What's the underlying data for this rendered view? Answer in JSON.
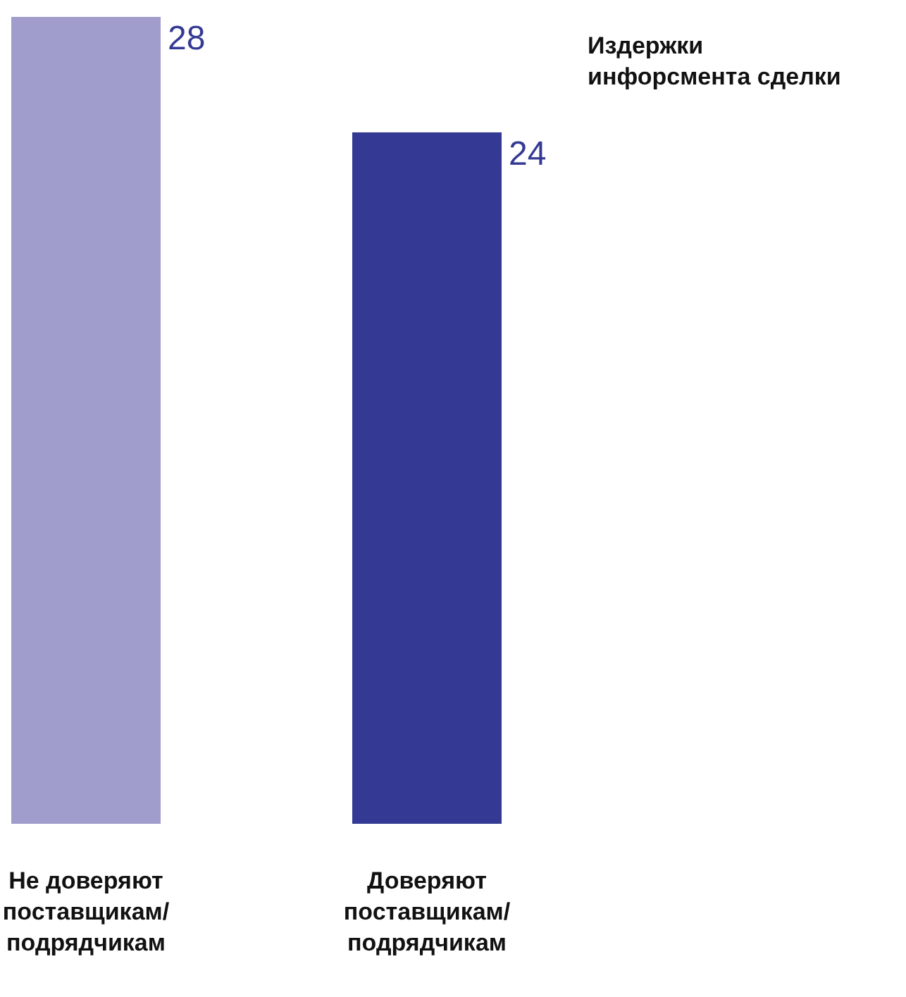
{
  "chart_data": {
    "type": "bar",
    "title": "Издержки\nинфорсмента сделки",
    "categories": [
      "Не доверяют\nпоставщикам/\nподрядчикам",
      "Доверяют\nпоставщикам/\nподрядчикам"
    ],
    "values": [
      28,
      24
    ],
    "colors": [
      "#a09ccb",
      "#343a94"
    ],
    "data_labels": true
  }
}
